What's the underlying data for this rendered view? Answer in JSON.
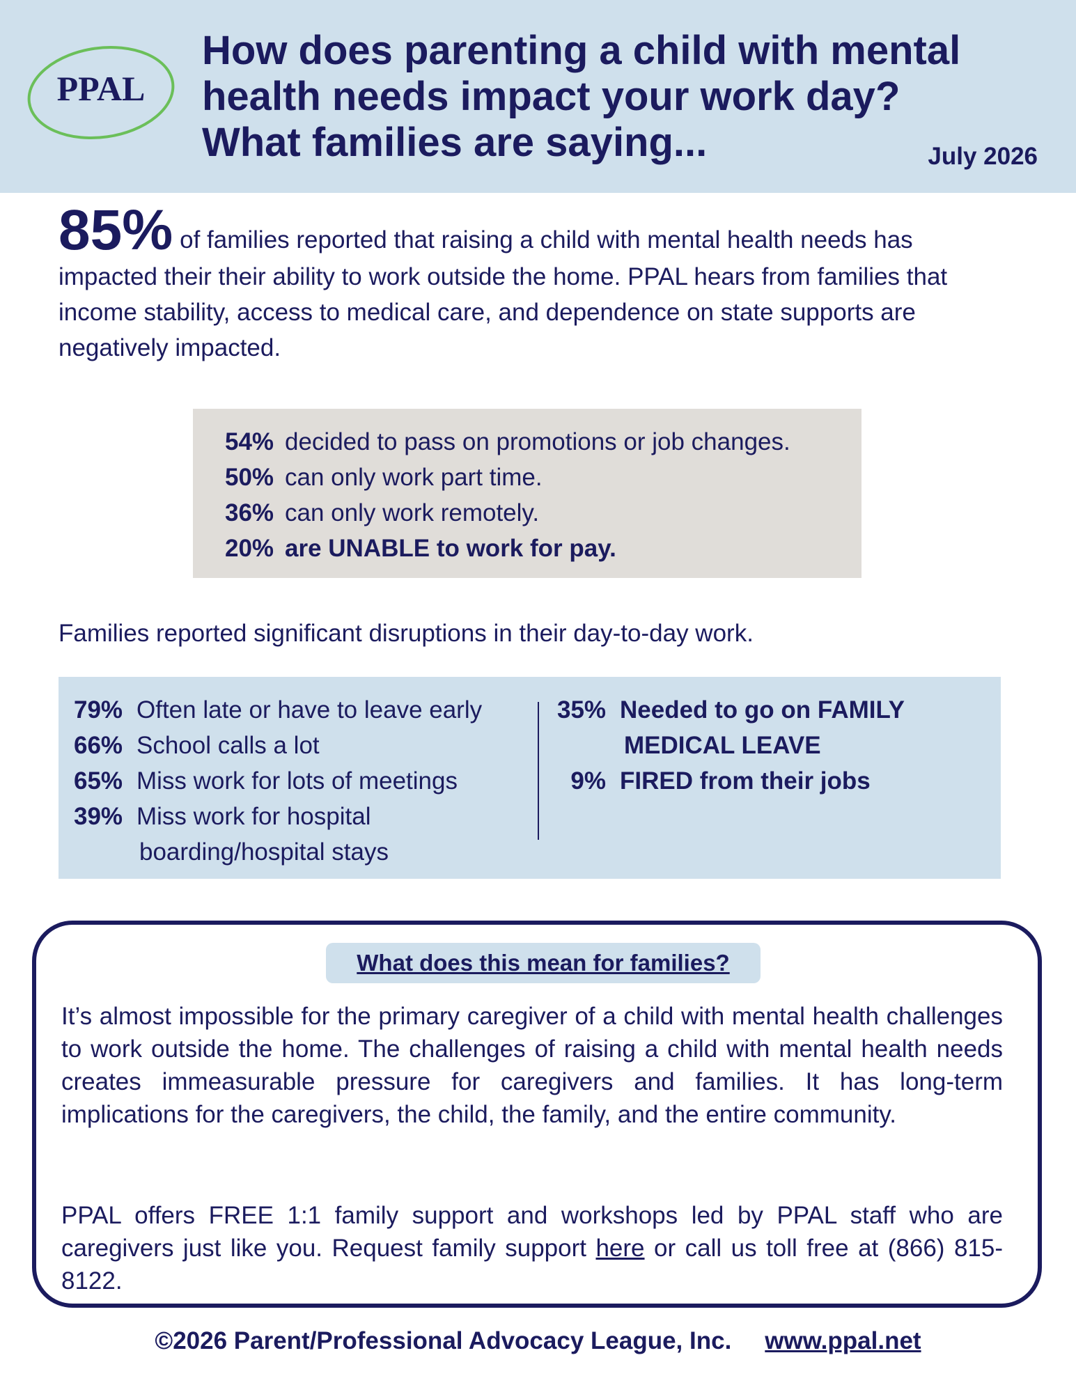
{
  "header": {
    "logo_text": "PPAL",
    "title_lines": [
      "How does parenting a child with mental",
      "health needs impact your work day?",
      "What families are saying..."
    ],
    "date": "July 2026"
  },
  "intro": {
    "big_stat": "85%",
    "text": "of families reported that raising a child with mental health needs has impacted their their ability to work outside the home. PPAL hears from families that income stability, access to medical care, and  dependence on state supports are negatively impacted."
  },
  "work_stats": [
    {
      "pct": "54%",
      "text": "decided to pass on promotions or job changes."
    },
    {
      "pct": "50%",
      "text": "can only work part time."
    },
    {
      "pct": "36%",
      "text": "can only work remotely."
    },
    {
      "pct": "20%",
      "text": "are UNABLE  to work for pay."
    }
  ],
  "disruptions": {
    "lead": "Families reported significant disruptions in their day-to-day work.",
    "left": [
      {
        "pct": "79%",
        "text": "Often late or have to leave early"
      },
      {
        "pct": "66%",
        "text": "School calls a lot"
      },
      {
        "pct": "65%",
        "text": "Miss work for lots of meetings"
      },
      {
        "pct": "39%",
        "text": "Miss work for hospital",
        "cont": "boarding/hospital stays"
      }
    ],
    "right": [
      {
        "pct": "35%",
        "text": "Needed to go on FAMILY",
        "cont": "MEDICAL LEAVE"
      },
      {
        "pct": "9%",
        "text": "FIRED from their jobs"
      }
    ]
  },
  "card": {
    "title": "What does this mean for families? ",
    "p1": "It’s almost impossible for the primary caregiver of a child with mental health challenges to work outside the home. The challenges of raising a child with mental health needs creates immeasurable pressure for caregivers and families. It has long-term implications for the caregivers, the child, the family, and the entire community.",
    "p2_before": "PPAL offers FREE 1:1 family support and workshops led by PPAL staff who are caregivers just like you. Request family support ",
    "p2_link": "here",
    "p2_after": " or call us toll free at (866) 815-8122."
  },
  "footer": {
    "copyright": "©2026 Parent/Professional Advocacy League, Inc.",
    "url": "www.ppal.net"
  },
  "colors": {
    "navy": "#1b1b5e",
    "light_blue": "#cfe0ec",
    "gray": "#e0ddd9",
    "logo_ring": "#6bbf59"
  }
}
